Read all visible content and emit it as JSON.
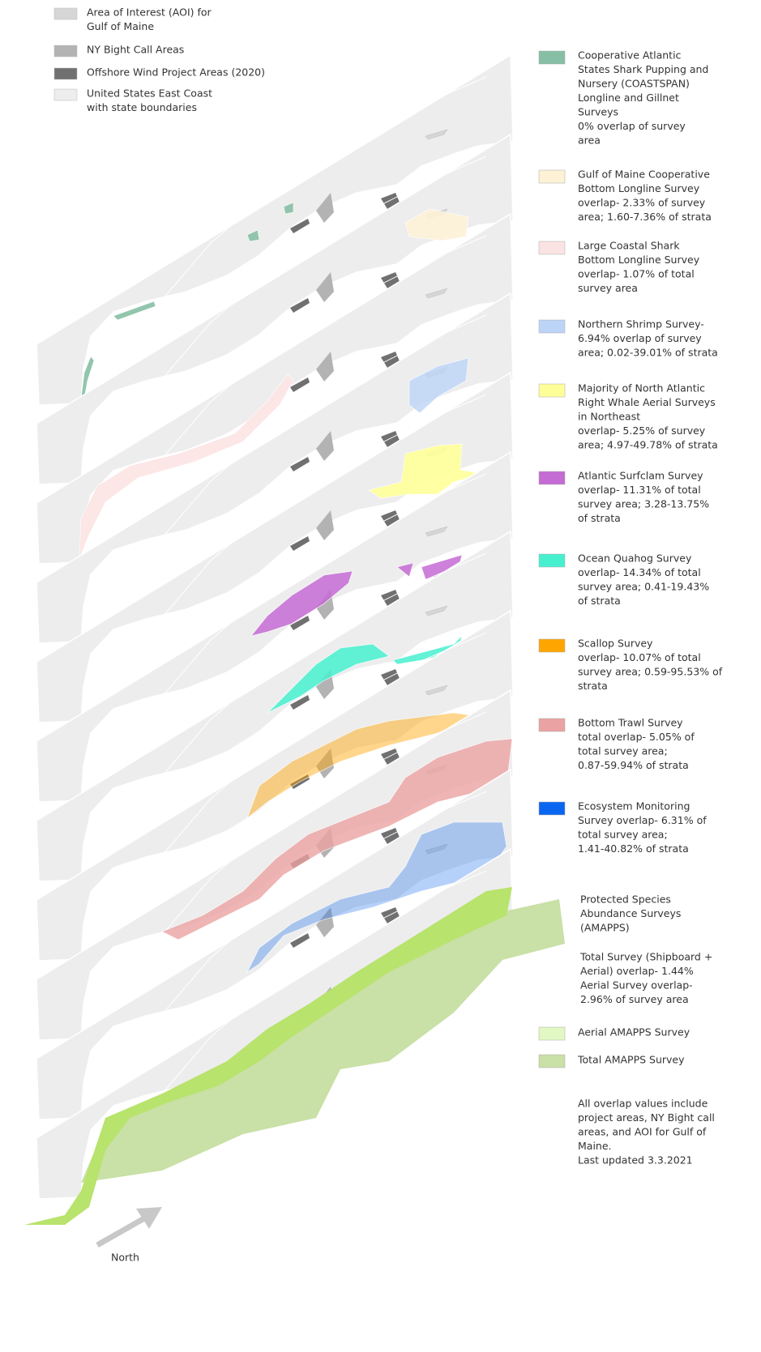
{
  "top_legend": [
    {
      "label": [
        "Area of Interest (AOI) for",
        "Gulf of Maine"
      ],
      "color": "#d6d6d6"
    },
    {
      "label": [
        "NY Bight Call Areas"
      ],
      "color": "#b3b3b3"
    },
    {
      "label": [
        "Offshore Wind Project Areas (2020)"
      ],
      "color": "#707070"
    },
    {
      "label": [
        "United States East Coast",
        "with state boundaries"
      ],
      "color": "#ededed"
    }
  ],
  "survey_legend": [
    {
      "label": [
        "Cooperative Atlantic",
        "States Shark Pupping and",
        "Nursery (COASTSPAN)",
        "Longline and Gillnet",
        "Surveys",
        "0% overlap of survey",
        "area"
      ],
      "color": "#86bfa4"
    },
    {
      "label": [
        "Gulf of Maine Cooperative",
        "Bottom Longline Survey",
        "overlap- 2.33% of survey",
        "area; 1.60-7.36% of strata"
      ],
      "color": "#fdf1d6"
    },
    {
      "label": [
        "Large Coastal Shark",
        "Bottom Longline Survey",
        "overlap- 1.07% of total",
        "survey area"
      ],
      "color": "#fce3e3"
    },
    {
      "label": [
        "Northern Shrimp Survey-",
        "6.94% overlap of survey",
        "area; 0.02-39.01% of strata"
      ],
      "color": "#bcd4f7"
    },
    {
      "label": [
        "Majority of North Atlantic",
        "Right Whale Aerial Surveys",
        "in Northeast",
        "overlap- 5.25% of survey",
        "area; 4.97-49.78% of strata"
      ],
      "color": "#ffff99"
    },
    {
      "label": [
        "Atlantic Surfclam Survey",
        "overlap- 11.31% of total",
        "survey area; 3.28-13.75%",
        "of strata"
      ],
      "color": "#c46bd4"
    },
    {
      "label": [
        "Ocean Quahog Survey",
        "overlap- 14.34% of total",
        "survey area; 0.41-19.43%",
        "of strata"
      ],
      "color": "#46f0cf"
    },
    {
      "label": [
        "Scallop Survey",
        "overlap- 10.07% of total",
        "survey area; 0.59-95.53% of",
        "strata"
      ],
      "color": "#ffa500"
    },
    {
      "label": [
        "Bottom Trawl Survey",
        "total overlap- 5.05% of",
        "total survey area;",
        "0.87-59.94% of strata"
      ],
      "color": "#eba2a3"
    },
    {
      "label": [
        "Ecosystem Monitoring",
        "Survey overlap- 6.31% of",
        "total survey area;",
        "1.41-40.82% of strata"
      ],
      "color": "#0a66f0"
    }
  ],
  "amapps": {
    "title": [
      "Protected Species",
      "Abundance Surveys",
      "(AMAPPS)"
    ],
    "overlap": [
      "Total Survey (Shipboard +",
      "Aerial) overlap- 1.44%",
      "Aerial Survey overlap-",
      "2.96% of survey area"
    ]
  },
  "amapps_legend": [
    {
      "label": [
        "Aerial AMAPPS Survey"
      ],
      "color": "#e2f8c4"
    },
    {
      "label": [
        "Total AMAPPS Survey"
      ],
      "color": "#c9e0a6"
    }
  ],
  "footnote": [
    "All overlap values include",
    "project areas, NY Bight call",
    "areas, and AOI for Gulf of",
    "Maine.",
    "Last updated  3.3.2021"
  ],
  "north": "North"
}
